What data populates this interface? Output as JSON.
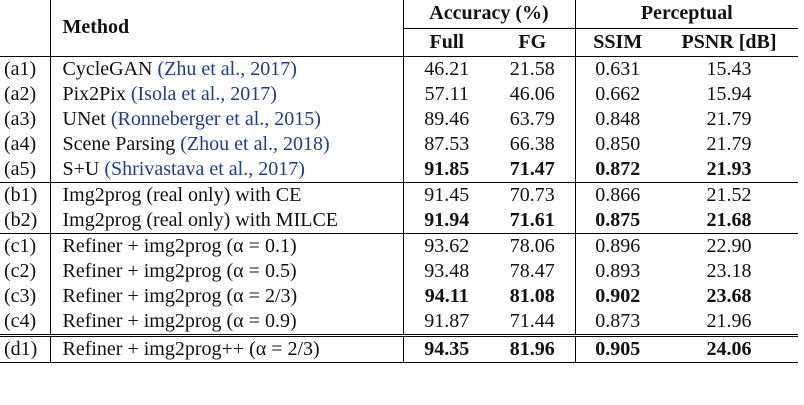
{
  "table": {
    "header": {
      "method": "Method",
      "accuracy": "Accuracy (%)",
      "perceptual": "Perceptual",
      "columns": [
        "Full",
        "FG",
        "SSIM",
        "PSNR [dB]"
      ]
    },
    "groups": [
      [
        {
          "id": "(a1)",
          "method": "CycleGAN",
          "cite": "(Zhu et al., 2017)",
          "values": [
            "46.21",
            "21.58",
            "0.631",
            "15.43"
          ],
          "bold": false
        },
        {
          "id": "(a2)",
          "method": "Pix2Pix",
          "cite": "(Isola et al., 2017)",
          "values": [
            "57.11",
            "46.06",
            "0.662",
            "15.94"
          ],
          "bold": false
        },
        {
          "id": "(a3)",
          "method": "UNet",
          "cite": "(Ronneberger et al., 2015)",
          "values": [
            "89.46",
            "63.79",
            "0.848",
            "21.79"
          ],
          "bold": false
        },
        {
          "id": "(a4)",
          "method": "Scene Parsing",
          "cite": "(Zhou et al., 2018)",
          "values": [
            "87.53",
            "66.38",
            "0.850",
            "21.79"
          ],
          "bold": false
        },
        {
          "id": "(a5)",
          "method": "S+U",
          "cite": "(Shrivastava et al., 2017)",
          "values": [
            "91.85",
            "71.47",
            "0.872",
            "21.93"
          ],
          "bold": true
        }
      ],
      [
        {
          "id": "(b1)",
          "method": "Img2prog (real only) with CE",
          "values": [
            "91.45",
            "70.73",
            "0.866",
            "21.52"
          ],
          "bold": false
        },
        {
          "id": "(b2)",
          "method": "Img2prog (real only) with MILCE",
          "values": [
            "91.94",
            "71.61",
            "0.875",
            "21.68"
          ],
          "bold": true
        }
      ],
      [
        {
          "id": "(c1)",
          "method": "Refiner + img2prog (α = 0.1)",
          "values": [
            "93.62",
            "78.06",
            "0.896",
            "22.90"
          ],
          "bold": false
        },
        {
          "id": "(c2)",
          "method": "Refiner + img2prog (α = 0.5)",
          "values": [
            "93.48",
            "78.47",
            "0.893",
            "23.18"
          ],
          "bold": false
        },
        {
          "id": "(c3)",
          "method": "Refiner + img2prog (α = 2/3)",
          "values": [
            "94.11",
            "81.08",
            "0.902",
            "23.68"
          ],
          "bold": true
        },
        {
          "id": "(c4)",
          "method": "Refiner + img2prog (α = 0.9)",
          "values": [
            "91.87",
            "71.44",
            "0.873",
            "21.96"
          ],
          "bold": false
        }
      ],
      [
        {
          "id": "(d1)",
          "method": "Refiner + img2prog++ (α = 2/3)",
          "values": [
            "94.35",
            "81.96",
            "0.905",
            "24.06"
          ],
          "bold": true
        }
      ]
    ]
  }
}
